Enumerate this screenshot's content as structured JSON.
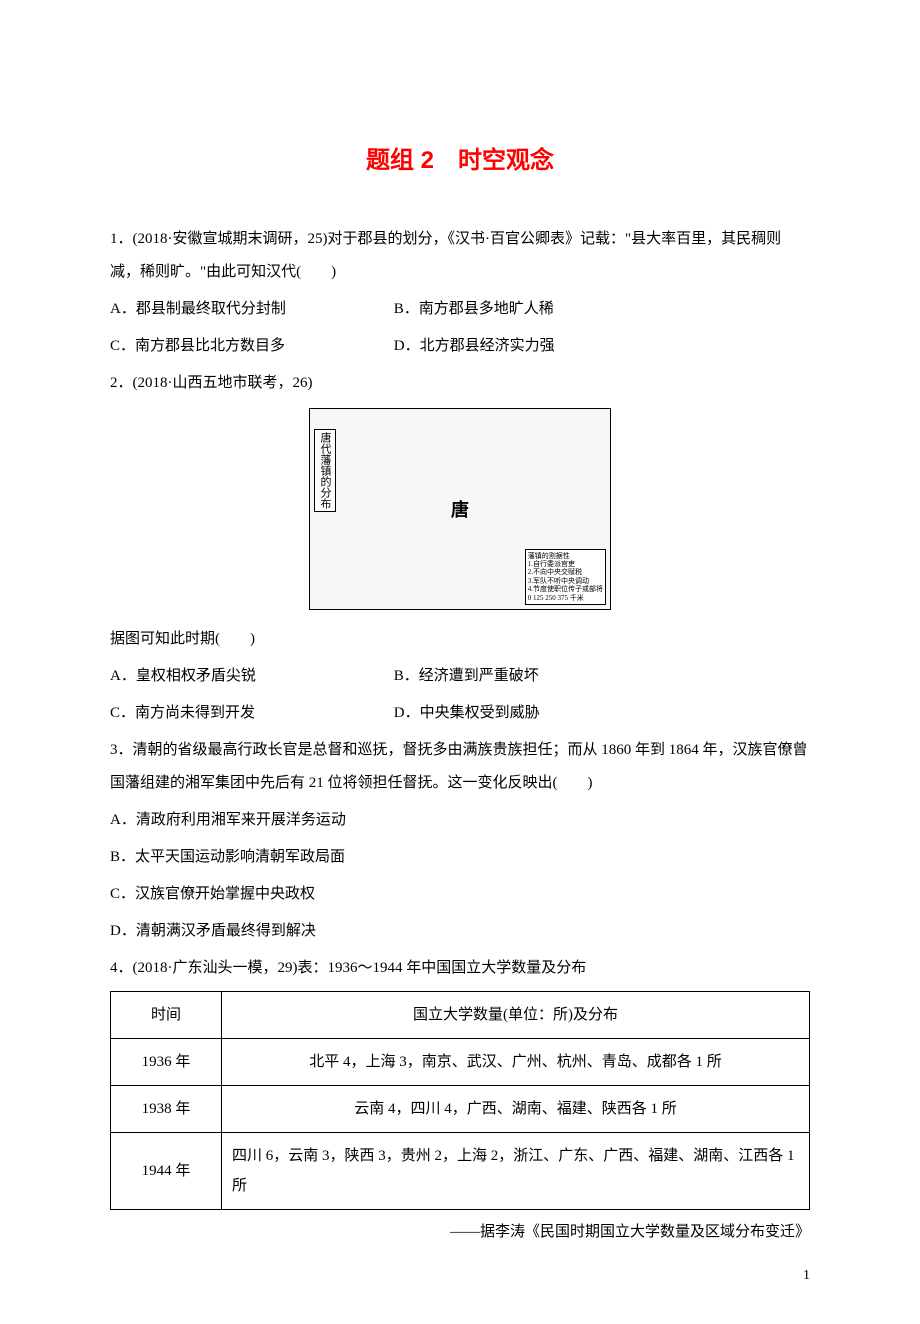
{
  "title": "题组 2　时空观念",
  "q1": {
    "stem": "1．(2018·安徽宣城期末调研，25)对于郡县的划分，《汉书·百官公卿表》记载：\"县大率百里，其民稠则减，稀则旷。\"由此可知汉代(　　)",
    "optA": "A．郡县制最终取代分封制",
    "optB": "B．南方郡县多地旷人稀",
    "optC": "C．南方郡县比北方数目多",
    "optD": "D．北方郡县经济实力强"
  },
  "q2": {
    "stem_top": "2．(2018·山西五地市联考，26)",
    "map": {
      "left_label": "唐代藩镇的分布",
      "center": "唐",
      "legend_title": "藩镇的割据性",
      "legend_items": [
        "1.自行委派官吏",
        "2.不向中央交赋税",
        "3.军队不听中央调动",
        "4.节度使职位传子或部将"
      ],
      "scale": "0  125 250 375 千米"
    },
    "stem_bottom": "据图可知此时期(　　)",
    "optA": "A．皇权相权矛盾尖锐",
    "optB": "B．经济遭到严重破坏",
    "optC": "C．南方尚未得到开发",
    "optD": "D．中央集权受到威胁"
  },
  "q3": {
    "stem": "3．清朝的省级最高行政长官是总督和巡抚，督抚多由满族贵族担任；而从 1860 年到 1864 年，汉族官僚曾国藩组建的湘军集团中先后有 21 位将领担任督抚。这一变化反映出(　　)",
    "optA": "A．清政府利用湘军来开展洋务运动",
    "optB": "B．太平天国运动影响清朝军政局面",
    "optC": "C．汉族官僚开始掌握中央政权",
    "optD": "D．清朝满汉矛盾最终得到解决"
  },
  "q4": {
    "stem": "4．(2018·广东汕头一模，29)表：1936～1944 年中国国立大学数量及分布",
    "table": {
      "head_time": "时间",
      "head_dist": "国立大学数量(单位：所)及分布",
      "rows": [
        {
          "time": "1936 年",
          "dist": "北平 4，上海 3，南京、武汉、广州、杭州、青岛、成都各 1 所",
          "center": true
        },
        {
          "time": "1938 年",
          "dist": "云南 4，四川 4，广西、湖南、福建、陕西各 1 所",
          "center": true
        },
        {
          "time": "1944 年",
          "dist": "四川 6，云南 3，陕西 3，贵州 2，上海 2，浙江、广东、广西、福建、湖南、江西各 1 所",
          "center": false
        }
      ]
    },
    "source": "——据李涛《民国时期国立大学数量及区域分布变迁》"
  },
  "page_number": "1"
}
